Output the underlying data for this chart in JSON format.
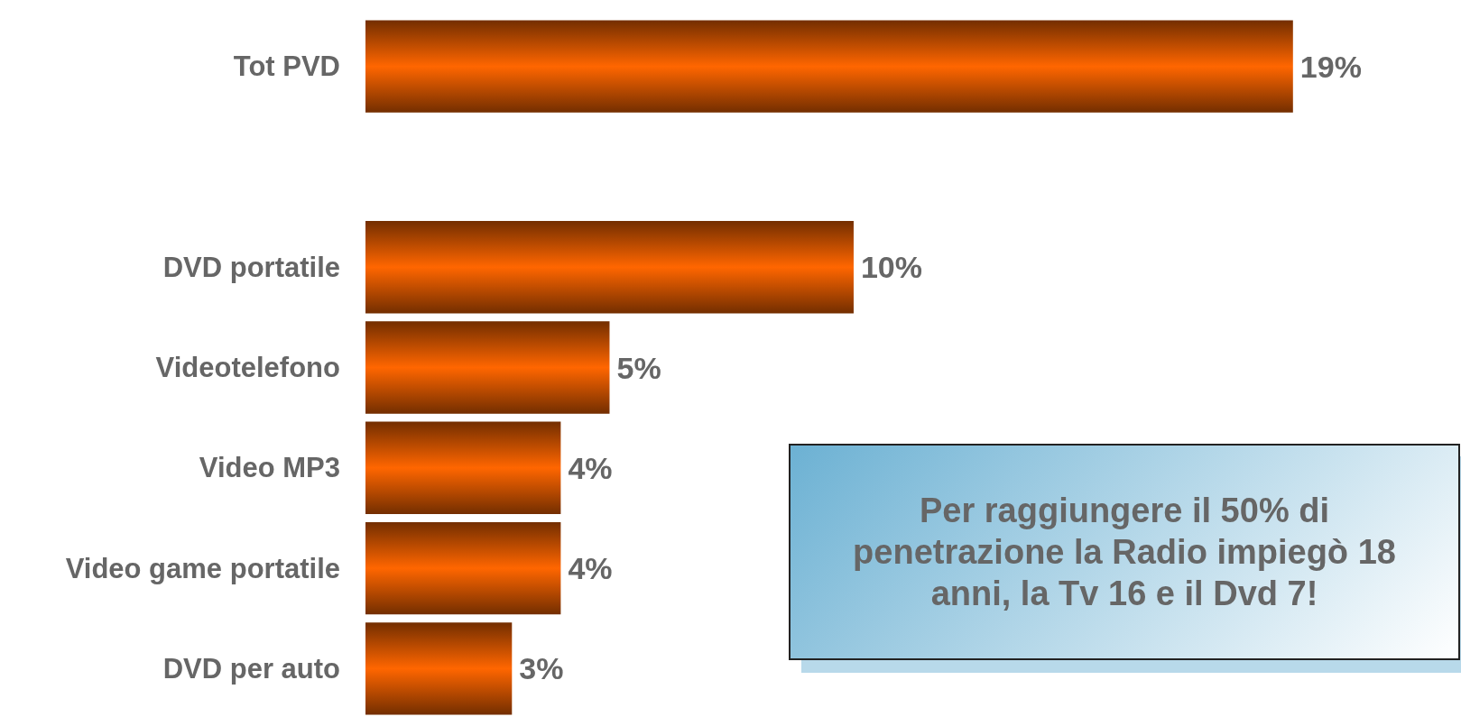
{
  "chart_data": {
    "type": "bar",
    "orientation": "horizontal",
    "categories": [
      "Tot PVD",
      null,
      "DVD portatile",
      "Videotelefono",
      "Video MP3",
      "Video game portatile",
      "DVD per auto"
    ],
    "values": [
      19,
      null,
      10,
      5,
      4,
      4,
      3
    ],
    "value_labels": [
      "19%",
      null,
      "10%",
      "5%",
      "4%",
      "4%",
      "3%"
    ],
    "color": "#ff6600",
    "annotations": [
      "Per raggiungere il 50% di penetrazione la Radio impiegò 18 anni, la Tv 16 e il Dvd 7!"
    ]
  }
}
